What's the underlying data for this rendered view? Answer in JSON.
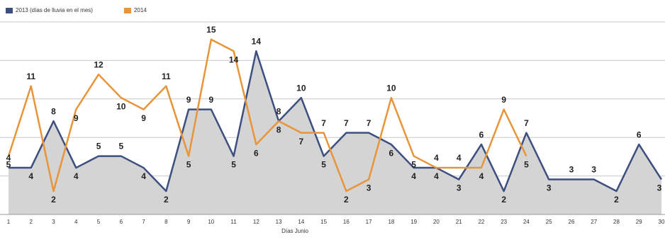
{
  "chart_data": {
    "type": "line",
    "x_label": "Días Junio",
    "categories": [
      "1",
      "2",
      "3",
      "4",
      "5",
      "6",
      "7",
      "8",
      "9",
      "10",
      "11",
      "12",
      "13",
      "14",
      "15",
      "16",
      "17",
      "18",
      "19",
      "20",
      "21",
      "22",
      "23",
      "24",
      "25",
      "26",
      "27",
      "28",
      "29",
      "30"
    ],
    "series": [
      {
        "name": "2013 (días de lluvia en el mes)",
        "color": "#3d4f7f",
        "values": [
          4,
          4,
          8,
          4,
          5,
          5,
          4,
          2,
          9,
          9,
          5,
          14,
          8,
          10,
          5,
          7,
          7,
          6,
          4,
          4,
          3,
          6,
          2,
          7,
          3,
          3,
          3,
          2,
          6,
          3
        ]
      },
      {
        "name": "2014",
        "color": "#e8953a",
        "values": [
          5,
          11,
          2,
          9,
          12,
          10,
          9,
          11,
          5,
          15,
          14,
          6,
          8,
          7,
          7,
          2,
          3,
          10,
          5,
          4,
          4,
          4,
          9,
          5,
          null,
          null,
          null,
          null,
          null,
          null
        ]
      }
    ],
    "ylim": [
      0,
      16.5
    ],
    "yticks": [
      0,
      3.3,
      6.6,
      9.9,
      13.2,
      16.5
    ],
    "grid": true
  }
}
